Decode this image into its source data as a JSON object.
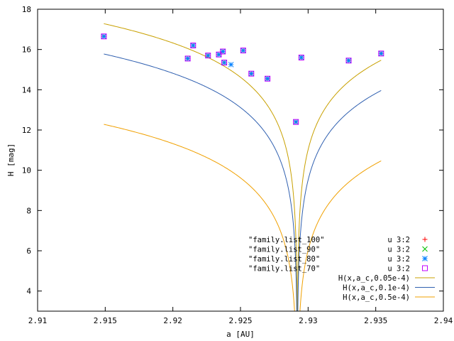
{
  "chart_data": {
    "type": "scatter",
    "xlabel": "a [AU]",
    "ylabel": "H [mag]",
    "xlim": [
      2.91,
      2.94
    ],
    "ylim": [
      3,
      18
    ],
    "x_ticks": [
      "2.91",
      "2.915",
      "2.92",
      "2.925",
      "2.93",
      "2.935",
      "2.94"
    ],
    "y_ticks": [
      "4",
      "6",
      "8",
      "10",
      "12",
      "14",
      "16",
      "18"
    ],
    "grid": false,
    "legend_position": "bottom-right",
    "legend_using": "u 3:2",
    "series": [
      {
        "name": "\"family.list_100\"",
        "marker": "plus",
        "color": "#ff0000",
        "points": [
          [
            2.9149,
            16.65
          ],
          [
            2.9211,
            15.55
          ],
          [
            2.9215,
            16.2
          ],
          [
            2.9226,
            15.7
          ],
          [
            2.9234,
            15.75
          ],
          [
            2.9237,
            15.9
          ],
          [
            2.9238,
            15.35
          ],
          [
            2.9252,
            15.95
          ],
          [
            2.9258,
            14.8
          ],
          [
            2.927,
            14.55
          ],
          [
            2.9291,
            12.4
          ],
          [
            2.9295,
            15.6
          ],
          [
            2.933,
            15.45
          ],
          [
            2.9354,
            15.8
          ]
        ]
      },
      {
        "name": "\"family.list_90\"",
        "marker": "cross",
        "color": "#00c000",
        "points": [
          [
            2.9149,
            16.65
          ],
          [
            2.9211,
            15.55
          ],
          [
            2.9215,
            16.2
          ],
          [
            2.9226,
            15.7
          ],
          [
            2.9234,
            15.75
          ],
          [
            2.9237,
            15.9
          ],
          [
            2.9238,
            15.35
          ],
          [
            2.9252,
            15.95
          ],
          [
            2.9258,
            14.8
          ],
          [
            2.927,
            14.55
          ],
          [
            2.9291,
            12.4
          ],
          [
            2.9295,
            15.6
          ],
          [
            2.933,
            15.45
          ],
          [
            2.9354,
            15.8
          ]
        ]
      },
      {
        "name": "\"family.list_80\"",
        "marker": "star",
        "color": "#0080ff",
        "points": [
          [
            2.9149,
            16.65
          ],
          [
            2.9211,
            15.55
          ],
          [
            2.9215,
            16.2
          ],
          [
            2.9226,
            15.7
          ],
          [
            2.9234,
            15.75
          ],
          [
            2.9237,
            15.9
          ],
          [
            2.9238,
            15.35
          ],
          [
            2.9243,
            15.25
          ],
          [
            2.9252,
            15.95
          ],
          [
            2.9258,
            14.8
          ],
          [
            2.927,
            14.55
          ],
          [
            2.9291,
            12.4
          ],
          [
            2.9295,
            15.6
          ],
          [
            2.933,
            15.45
          ],
          [
            2.9354,
            15.8
          ]
        ]
      },
      {
        "name": "\"family.list_70\"",
        "marker": "square",
        "color": "#c000ff",
        "points": [
          [
            2.9149,
            16.65
          ],
          [
            2.9211,
            15.55
          ],
          [
            2.9215,
            16.2
          ],
          [
            2.9226,
            15.7
          ],
          [
            2.9234,
            15.75
          ],
          [
            2.9237,
            15.9
          ],
          [
            2.9238,
            15.35
          ],
          [
            2.9252,
            15.95
          ],
          [
            2.9258,
            14.8
          ],
          [
            2.927,
            14.55
          ],
          [
            2.9291,
            12.4
          ],
          [
            2.9295,
            15.6
          ],
          [
            2.933,
            15.45
          ],
          [
            2.9354,
            15.8
          ]
        ]
      }
    ],
    "curves": [
      {
        "name": "H(x,a_c,0.05e-4)",
        "color": "#c8a000",
        "a_c": 2.9292,
        "C": 5e-06,
        "x_range": [
          2.9149,
          2.9354
        ]
      },
      {
        "name": "H(x,a_c,0.1e-4)",
        "color": "#3060b0",
        "a_c": 2.9292,
        "C": 1e-05,
        "x_range": [
          2.9149,
          2.9354
        ]
      },
      {
        "name": "H(x,a_c,0.5e-4)",
        "color": "#f0a000",
        "a_c": 2.9292,
        "C": 5e-05,
        "x_range": [
          2.9149,
          2.9354
        ]
      }
    ]
  }
}
